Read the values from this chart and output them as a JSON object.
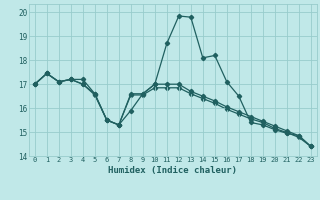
{
  "xlabel": "Humidex (Indice chaleur)",
  "background_color": "#c0e8e8",
  "grid_color": "#98cccc",
  "line_color": "#206060",
  "xlim": [
    -0.5,
    23.5
  ],
  "ylim": [
    14.0,
    20.35
  ],
  "yticks": [
    14,
    15,
    16,
    17,
    18,
    19,
    20
  ],
  "xticks": [
    0,
    1,
    2,
    3,
    4,
    5,
    6,
    7,
    8,
    9,
    10,
    11,
    12,
    13,
    14,
    15,
    16,
    17,
    18,
    19,
    20,
    21,
    22,
    23
  ],
  "line1": [
    17.0,
    17.45,
    17.1,
    17.2,
    17.2,
    16.6,
    15.5,
    15.3,
    15.9,
    16.6,
    17.0,
    18.7,
    19.85,
    19.8,
    18.1,
    18.2,
    17.1,
    16.5,
    15.4,
    15.3,
    15.1,
    14.95,
    14.85,
    14.4
  ],
  "line2": [
    17.0,
    17.45,
    17.1,
    17.2,
    17.0,
    16.6,
    15.5,
    15.3,
    16.6,
    16.6,
    17.0,
    17.0,
    17.0,
    16.7,
    16.5,
    16.3,
    16.05,
    15.85,
    15.65,
    15.45,
    15.25,
    15.05,
    14.85,
    14.4
  ],
  "line3": [
    17.0,
    17.45,
    17.1,
    17.2,
    17.0,
    16.55,
    15.5,
    15.3,
    16.55,
    16.55,
    16.85,
    16.85,
    16.85,
    16.6,
    16.4,
    16.2,
    15.95,
    15.75,
    15.55,
    15.4,
    15.15,
    14.98,
    14.78,
    14.4
  ]
}
